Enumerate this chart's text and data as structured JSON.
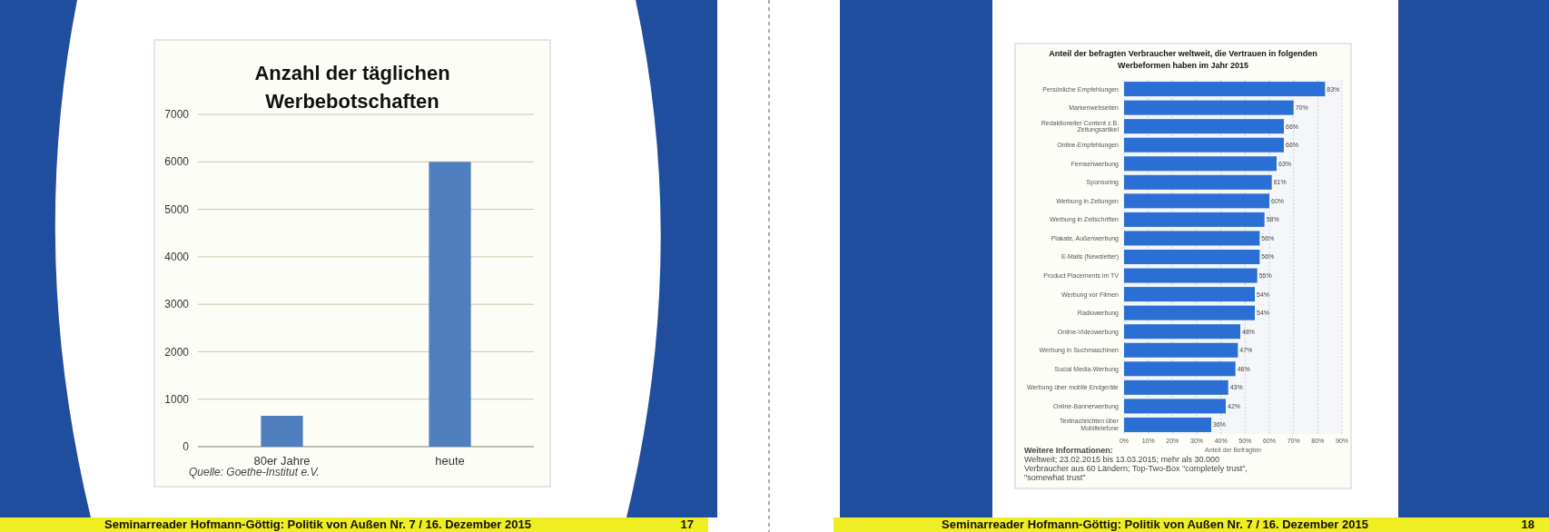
{
  "chart_data": [
    {
      "type": "bar",
      "title": "Anzahl der täglichen Werbebotschaften",
      "categories": [
        "80er Jahre",
        "heute"
      ],
      "values": [
        650,
        6000
      ],
      "color": "#4f7fbf",
      "ylim": [
        0,
        7000
      ],
      "yticks": [
        0,
        1000,
        2000,
        3000,
        4000,
        5000,
        6000,
        7000
      ],
      "grid": true,
      "annotations": [
        "Quelle: Goethe-Institut e.V.",
        "Seminarreader Hofmann-Göttig: Politik von Außen Nr. 7 / 16. Dezember 2015",
        "17"
      ]
    },
    {
      "type": "bar",
      "orientation": "horizontal",
      "title": "Anteil der befragten Verbraucher weltweit, die Vertrauen in folgenden Werbeformen haben im Jahr 2015",
      "xlabel": "Anteil der Befragten",
      "categories": [
        "Persönliche Empfehlungen",
        "Markenwebseiten",
        "Redaktioneller Content z.B. Zeitungsartikel",
        "Online-Empfehlungen",
        "Fernsehwerbung",
        "Sponsoring",
        "Werbung in Zeitungen",
        "Werbung in Zeitschriften",
        "Plakate, Außenwerbung",
        "E-Mails (Newsletter)",
        "Product Placements im TV",
        "Werbung vor Filmen",
        "Radiowerbung",
        "Online-Videowerbung",
        "Werbung in Suchmaschinen",
        "Social Media-Werbung",
        "Werbung über mobile Endgeräte",
        "Online-Bannerwerbung",
        "Textnachrichten über Mobiltelefone"
      ],
      "values": [
        83,
        70,
        66,
        66,
        63,
        61,
        60,
        58,
        56,
        56,
        55,
        54,
        54,
        48,
        47,
        46,
        43,
        42,
        36
      ],
      "value_labels": [
        "83%",
        "70%",
        "66%",
        "66%",
        "63%",
        "61%",
        "60%",
        "58%",
        "56%",
        "56%",
        "55%",
        "54%",
        "54%",
        "48%",
        "47%",
        "46%",
        "43%",
        "42%",
        "36%"
      ],
      "color": "#2b6fd4",
      "xlim": [
        0,
        90
      ],
      "xticks": [
        {
          "value": 0,
          "label": "0%"
        },
        {
          "value": 10,
          "label": "10%"
        },
        {
          "value": 20,
          "label": "20%"
        },
        {
          "value": 30,
          "label": "30%"
        },
        {
          "value": 40,
          "label": "40%"
        },
        {
          "value": 50,
          "label": "50%"
        },
        {
          "value": 60,
          "label": "60%"
        },
        {
          "value": 70,
          "label": "70%"
        },
        {
          "value": 80,
          "label": "80%"
        },
        {
          "value": 90,
          "label": "90%"
        }
      ],
      "grid": true,
      "annotations": [
        "Weitere Informationen:",
        "Weltweit; 23.02.2015 bis 13.03.2015; mehr als 30.000 Verbraucher aus 60 Ländern; Top-Two-Box \"completely trust\", \"somewhat trust\"",
        "Seminarreader Hofmann-Göttig: Politik von Außen Nr. 7 / 16. Dezember 2015",
        "18"
      ]
    }
  ]
}
